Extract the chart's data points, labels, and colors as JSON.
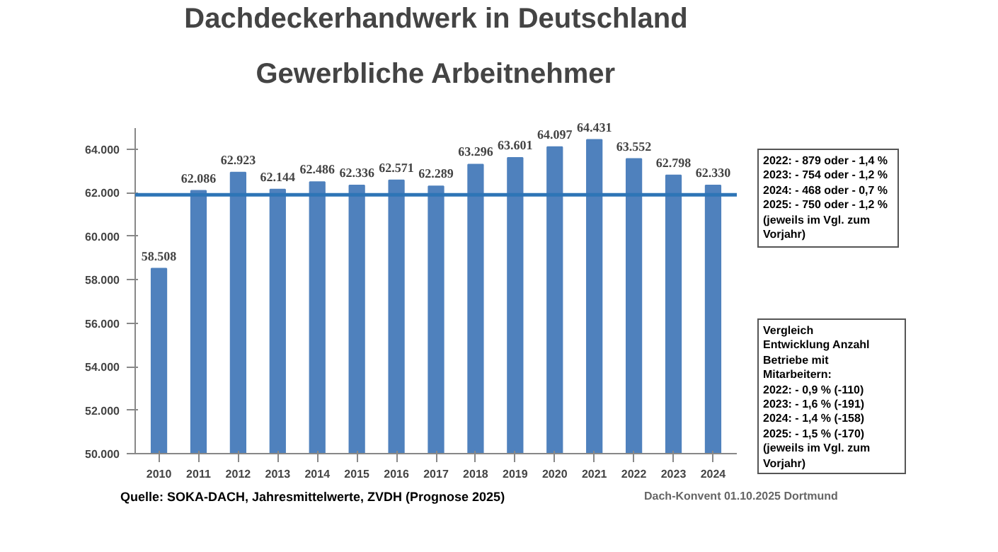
{
  "chart_data": {
    "type": "bar",
    "title": "Dachdeckerhandwerk in Deutschland",
    "subtitle": "Gewerbliche Arbeitnehmer",
    "categories": [
      "2010",
      "2011",
      "2012",
      "2013",
      "2014",
      "2015",
      "2016",
      "2017",
      "2018",
      "2019",
      "2020",
      "2021",
      "2022",
      "2023",
      "2024"
    ],
    "values": [
      58508,
      62086,
      62923,
      62144,
      62486,
      62336,
      62571,
      62289,
      63296,
      63601,
      64097,
      64431,
      63552,
      62798,
      62330
    ],
    "value_labels": [
      "58.508",
      "62.086",
      "62.923",
      "62.144",
      "62.486",
      "62.336",
      "62.571",
      "62.289",
      "63.296",
      "63.601",
      "64.097",
      "64.431",
      "63.552",
      "62.798",
      "62.330"
    ],
    "color": "#4f81bd",
    "ylim": [
      50000,
      65000
    ],
    "yticks": [
      {
        "value": 50000,
        "label": "50.000"
      },
      {
        "value": 52000,
        "label": "52.000"
      },
      {
        "value": 54000,
        "label": "54.000"
      },
      {
        "value": 56000,
        "label": "56.000"
      },
      {
        "value": 58000,
        "label": "58.000"
      },
      {
        "value": 60000,
        "label": "60.000"
      },
      {
        "value": 62000,
        "label": "62.000"
      },
      {
        "value": 64000,
        "label": "64.000"
      }
    ],
    "grid": false,
    "ref_lines": [
      {
        "axis": "y",
        "value": 61900,
        "color": "#2e75b6"
      }
    ],
    "annotations": [
      "2022: - 879 oder - 1,4 %\n2023: - 754 oder - 1,2 %\n2024: - 468 oder - 0,7 %\n2025: - 750 oder - 1,2 %\n(jeweils im Vgl. zum Vorjahr)",
      "Vergleich\nEntwicklung Anzahl\nBetriebe mit\nMitarbeitern:\n2022: - 0,9 % (-110)\n2023: - 1,6 % (-191)\n2024: - 1,4 % (-158)\n2025: - 1,5 % (-170)\n(jeweils im Vgl. zum\nVorjahr)",
      "Quelle: SOKA-DACH, Jahresmittelwerte, ZVDH (Prognose 2025)",
      "Dach-Konvent 01.10.2025 Dortmund"
    ]
  }
}
